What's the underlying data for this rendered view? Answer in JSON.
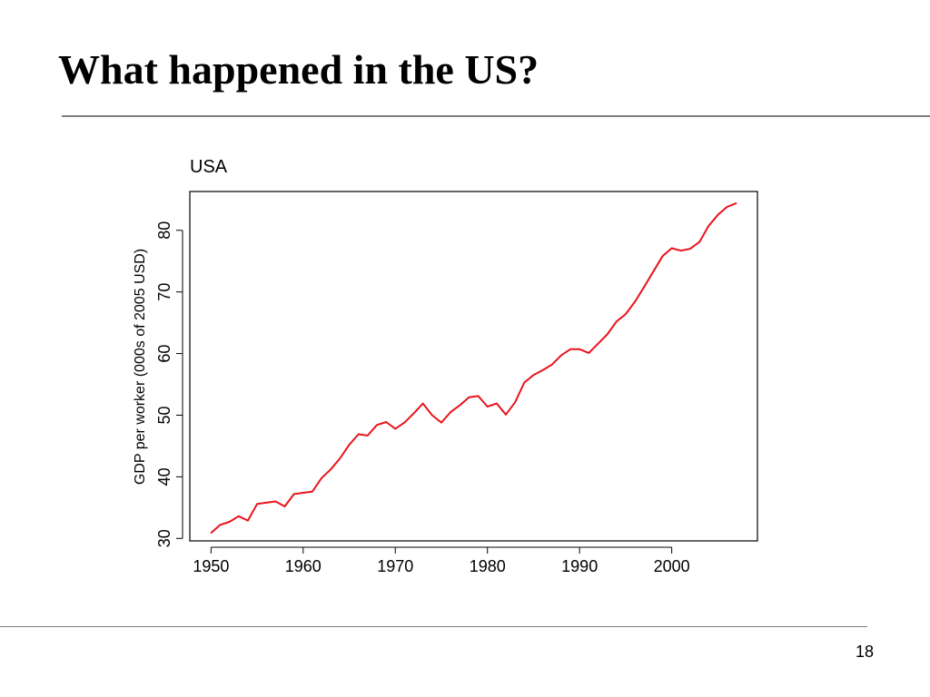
{
  "slide": {
    "title": "What happened in the US?",
    "page_number": "18"
  },
  "chart_data": {
    "type": "line",
    "title": "USA",
    "xlabel": "",
    "ylabel": "GDP per worker (000s of 2005 USD)",
    "xlim": [
      1947.7,
      2009.3
    ],
    "ylim": [
      29.6,
      86.3
    ],
    "xticks": [
      1950,
      1960,
      1970,
      1980,
      1990,
      2000
    ],
    "yticks": [
      30,
      40,
      50,
      60,
      70,
      80
    ],
    "grid": false,
    "legend": "none",
    "series": [
      {
        "color": "#e8131b",
        "x": [
          1950,
          1951,
          1952,
          1953,
          1954,
          1955,
          1956,
          1957,
          1958,
          1959,
          1960,
          1961,
          1962,
          1963,
          1964,
          1965,
          1966,
          1967,
          1968,
          1969,
          1970,
          1971,
          1972,
          1973,
          1974,
          1975,
          1976,
          1977,
          1978,
          1979,
          1980,
          1981,
          1982,
          1983,
          1984,
          1985,
          1986,
          1987,
          1988,
          1989,
          1990,
          1991,
          1992,
          1993,
          1994,
          1995,
          1996,
          1997,
          1998,
          1999,
          2000,
          2001,
          2002,
          2003,
          2004,
          2005,
          2006,
          2007
        ],
        "y": [
          30.9,
          32.2,
          32.7,
          33.6,
          32.9,
          35.6,
          35.8,
          36.0,
          35.2,
          37.2,
          37.4,
          37.6,
          39.8,
          41.2,
          43.0,
          45.2,
          46.9,
          46.7,
          48.4,
          48.9,
          47.8,
          48.8,
          50.3,
          51.9,
          50.0,
          48.8,
          50.5,
          51.6,
          52.9,
          53.1,
          51.4,
          51.9,
          50.1,
          52.1,
          55.3,
          56.5,
          57.3,
          58.2,
          59.7,
          60.7,
          60.7,
          60.1,
          61.6,
          63.1,
          65.2,
          66.4,
          68.4,
          70.8,
          73.3,
          75.8,
          77.1,
          76.7,
          77.0,
          78.1,
          80.7,
          82.5,
          83.8,
          84.4
        ]
      }
    ]
  }
}
